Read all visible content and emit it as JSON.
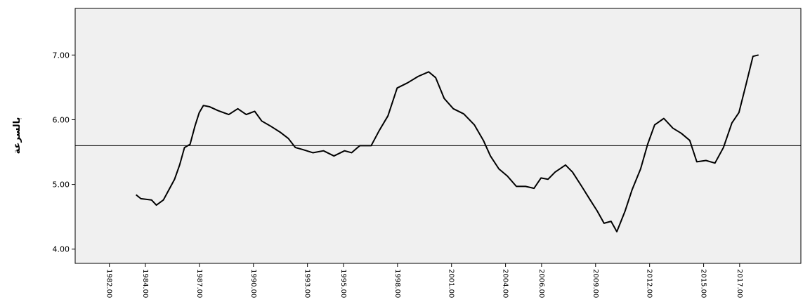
{
  "chart_data": {
    "type": "line",
    "y_label": "بالسرعة",
    "x": [
      1983.48,
      1983.75,
      1984.34,
      1984.61,
      1985.0,
      1985.31,
      1985.62,
      1985.9,
      1986.17,
      1986.48,
      1986.75,
      1986.99,
      1987.22,
      1987.57,
      1988.04,
      1988.63,
      1989.13,
      1989.6,
      1990.07,
      1990.46,
      1990.96,
      1991.47,
      1991.94,
      1992.33,
      1992.72,
      1993.3,
      1993.89,
      1994.47,
      1995.06,
      1995.45,
      1995.91,
      1996.54,
      1997.0,
      1997.47,
      1997.98,
      1998.56,
      1999.15,
      1999.73,
      2000.12,
      2000.59,
      2001.1,
      2001.68,
      2002.27,
      2002.77,
      2003.16,
      2003.63,
      2004.1,
      2004.6,
      2005.11,
      2005.58,
      2005.97,
      2006.36,
      2006.75,
      2007.33,
      2007.72,
      2008.23,
      2008.7,
      2009.09,
      2009.47,
      2009.86,
      2010.18,
      2010.64,
      2011.03,
      2011.5,
      2011.89,
      2012.28,
      2012.79,
      2013.29,
      2013.76,
      2014.23,
      2014.62,
      2015.13,
      2015.63,
      2016.1,
      2016.57,
      2016.96,
      2017.35,
      2017.74,
      2018.05
    ],
    "values": [
      4.84,
      4.78,
      4.76,
      4.68,
      4.76,
      4.92,
      5.08,
      5.3,
      5.57,
      5.62,
      5.9,
      6.11,
      6.22,
      6.2,
      6.14,
      6.08,
      6.17,
      6.08,
      6.13,
      5.98,
      5.9,
      5.81,
      5.71,
      5.57,
      5.54,
      5.49,
      5.52,
      5.44,
      5.52,
      5.49,
      5.6,
      5.6,
      5.84,
      6.06,
      6.49,
      6.57,
      6.67,
      6.74,
      6.65,
      6.33,
      6.17,
      6.09,
      5.92,
      5.68,
      5.44,
      5.24,
      5.13,
      4.97,
      4.97,
      4.94,
      5.1,
      5.08,
      5.19,
      5.3,
      5.19,
      4.97,
      4.76,
      4.59,
      4.4,
      4.43,
      4.27,
      4.59,
      4.92,
      5.24,
      5.62,
      5.92,
      6.02,
      5.87,
      5.79,
      5.68,
      5.35,
      5.37,
      5.33,
      5.57,
      5.95,
      6.11,
      6.54,
      6.98,
      7.0
    ],
    "color": "#000000",
    "reference_line": 5.6,
    "xlim": [
      1980.1,
      2020.4
    ],
    "xticks": [
      {
        "value": 1982,
        "label": "1982.00"
      },
      {
        "value": 1984,
        "label": "1984.00"
      },
      {
        "value": 1987,
        "label": "1987.00"
      },
      {
        "value": 1990,
        "label": "1990.00"
      },
      {
        "value": 1993,
        "label": "1993.00"
      },
      {
        "value": 1995,
        "label": "1995.00"
      },
      {
        "value": 1998,
        "label": "1998.00"
      },
      {
        "value": 2001,
        "label": "2001.00"
      },
      {
        "value": 2004,
        "label": "2004.00"
      },
      {
        "value": 2006,
        "label": "2006.00"
      },
      {
        "value": 2009,
        "label": "2009.00"
      },
      {
        "value": 2012,
        "label": "2012.00"
      },
      {
        "value": 2015,
        "label": "2015.00"
      },
      {
        "value": 2017,
        "label": "2017.00"
      }
    ],
    "ylim": [
      3.78,
      7.72
    ],
    "yticks": [
      {
        "value": 4,
        "label": "4.00"
      },
      {
        "value": 5,
        "label": "5.00"
      },
      {
        "value": 6,
        "label": "6.00"
      },
      {
        "value": 7,
        "label": "7.00"
      }
    ],
    "grid": false
  }
}
